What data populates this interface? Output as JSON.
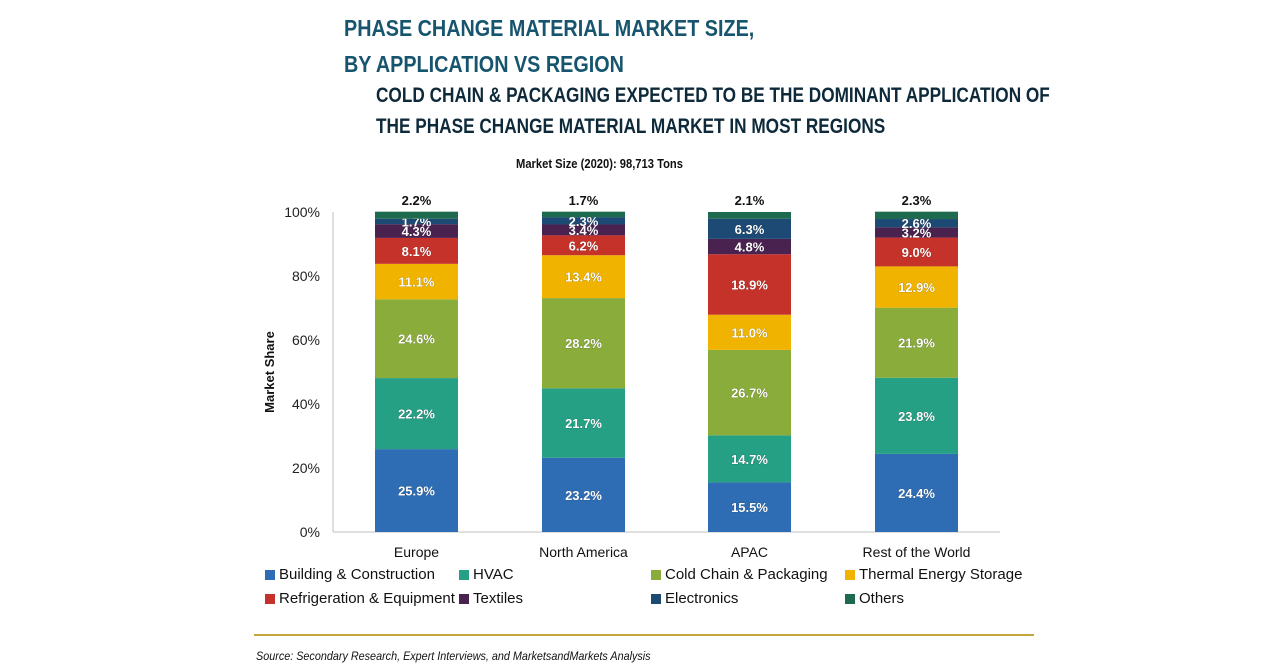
{
  "header": {
    "title_line1": "PHASE CHANGE MATERIAL MARKET SIZE,",
    "title_line2": "BY APPLICATION VS REGION",
    "subtitle_line1": "COLD CHAIN & PACKAGING EXPECTED TO BE THE DOMINANT APPLICATION OF",
    "subtitle_line2": "THE PHASE CHANGE MATERIAL MARKET IN MOST REGIONS",
    "market_size": "Market Size (2020): 98,713 Tons"
  },
  "footer": {
    "source": "Source: Secondary Research, Expert Interviews, and MarketsandMarkets Analysis"
  },
  "chart_data": {
    "type": "bar",
    "stacked": true,
    "title": "Market Size (2020): 98,713 Tons",
    "xlabel": "",
    "ylabel": "Market Share",
    "ylim": [
      0,
      100
    ],
    "yticks": [
      "0%",
      "20%",
      "40%",
      "60%",
      "80%",
      "100%"
    ],
    "grid": false,
    "legend_position": "bottom",
    "categories": [
      "Europe",
      "North America",
      "APAC",
      "Rest of the World"
    ],
    "series": [
      {
        "name": "Building & Construction",
        "color": "#2e6db4",
        "values": [
          25.9,
          23.2,
          15.5,
          24.4
        ]
      },
      {
        "name": "HVAC",
        "color": "#26a085",
        "values": [
          22.2,
          21.7,
          14.7,
          23.8
        ]
      },
      {
        "name": "Cold Chain & Packaging",
        "color": "#8aac3a",
        "values": [
          24.6,
          28.2,
          26.7,
          21.9
        ]
      },
      {
        "name": "Thermal Energy Storage",
        "color": "#f0b400",
        "values": [
          11.1,
          13.4,
          11.0,
          12.9
        ]
      },
      {
        "name": "Refrigeration & Equipment",
        "color": "#c5322a",
        "values": [
          8.1,
          6.2,
          18.9,
          9.0
        ]
      },
      {
        "name": "Textiles",
        "color": "#4a2250",
        "values": [
          4.3,
          3.4,
          4.8,
          3.2
        ]
      },
      {
        "name": "Electronics",
        "color": "#1c4a74",
        "values": [
          1.7,
          2.3,
          6.3,
          2.6
        ]
      },
      {
        "name": "Others",
        "color": "#1e6a4e",
        "values": [
          2.2,
          1.7,
          2.1,
          2.3
        ]
      }
    ],
    "top_labels": [
      "2.2%",
      "1.7%",
      "2.1%",
      "2.3%"
    ]
  }
}
